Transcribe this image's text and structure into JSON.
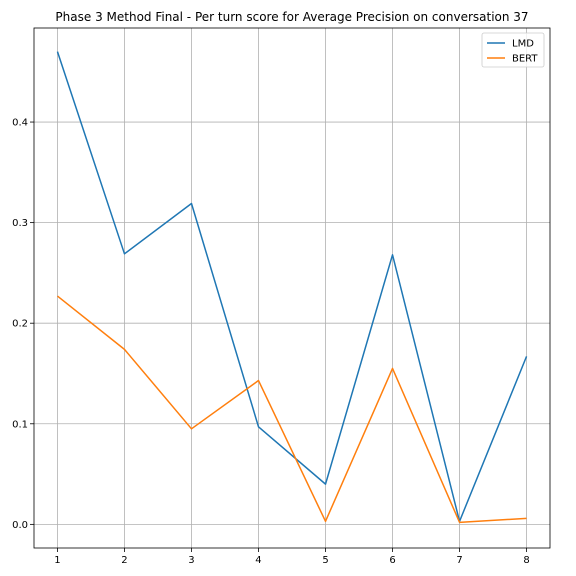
{
  "chart_data": {
    "type": "line",
    "title": "Phase 3 Method Final - Per turn score for Average Precision on conversation 37",
    "xlabel": "",
    "ylabel": "",
    "x": [
      1,
      2,
      3,
      4,
      5,
      6,
      7,
      8
    ],
    "xlim": [
      0.65,
      8.35
    ],
    "ylim": [
      -0.0235,
      0.4935
    ],
    "xticks": [
      1,
      2,
      3,
      4,
      5,
      6,
      7,
      8
    ],
    "yticks": [
      0.0,
      0.1,
      0.2,
      0.3,
      0.4
    ],
    "ytick_labels": [
      "0.0",
      "0.1",
      "0.2",
      "0.3",
      "0.4"
    ],
    "grid": true,
    "legend_position": "top-right",
    "series": [
      {
        "name": "LMD",
        "color": "#1f77b4",
        "values": [
          0.47,
          0.269,
          0.319,
          0.097,
          0.04,
          0.268,
          0.003,
          0.167
        ]
      },
      {
        "name": "BERT",
        "color": "#ff7f0e",
        "values": [
          0.227,
          0.174,
          0.095,
          0.143,
          0.003,
          0.155,
          0.002,
          0.006
        ]
      }
    ]
  }
}
